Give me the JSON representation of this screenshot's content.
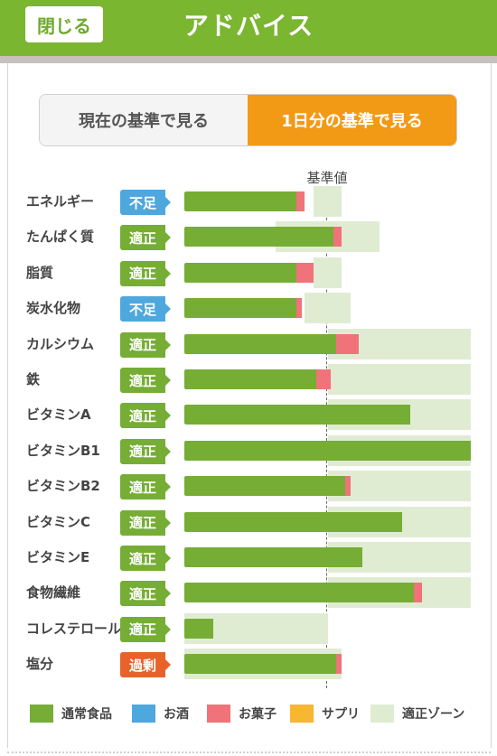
{
  "header": {
    "close_label": "閉じる",
    "title": "アドバイス"
  },
  "toggle": {
    "current_label": "現在の基準で見る",
    "daily_label": "1日分の基準で見る"
  },
  "chart_data": {
    "type": "bar",
    "reference_label": "基準値",
    "rows": [
      {
        "name": "エネルギー",
        "status": "不足",
        "status_type": "low",
        "zone": [
          0.45,
          0.55
        ],
        "food": 0.39,
        "snack": 0.03
      },
      {
        "name": "たんぱく質",
        "status": "適正",
        "status_type": "ok",
        "zone": [
          0.32,
          0.68
        ],
        "food": 0.52,
        "snack": 0.03
      },
      {
        "name": "脂質",
        "status": "適正",
        "status_type": "ok",
        "zone": [
          0.45,
          0.55
        ],
        "food": 0.39,
        "snack": 0.06
      },
      {
        "name": "炭水化物",
        "status": "不足",
        "status_type": "low",
        "zone": [
          0.42,
          0.58
        ],
        "food": 0.39,
        "snack": 0.02
      },
      {
        "name": "カルシウム",
        "status": "適正",
        "status_type": "ok",
        "zone": [
          0.5,
          1.0
        ],
        "food": 0.53,
        "snack": 0.08
      },
      {
        "name": "鉄",
        "status": "適正",
        "status_type": "ok",
        "zone": [
          0.5,
          1.0
        ],
        "food": 0.46,
        "snack": 0.05
      },
      {
        "name": "ビタミンA",
        "status": "適正",
        "status_type": "ok",
        "zone": [
          0.5,
          1.0
        ],
        "food": 0.79,
        "snack": 0.0
      },
      {
        "name": "ビタミンB1",
        "status": "適正",
        "status_type": "ok",
        "zone": [
          0.5,
          1.0
        ],
        "food": 1.0,
        "snack": 0.0
      },
      {
        "name": "ビタミンB2",
        "status": "適正",
        "status_type": "ok",
        "zone": [
          0.5,
          1.0
        ],
        "food": 0.56,
        "snack": 0.02
      },
      {
        "name": "ビタミンC",
        "status": "適正",
        "status_type": "ok",
        "zone": [
          0.5,
          1.0
        ],
        "food": 0.76,
        "snack": 0.0
      },
      {
        "name": "ビタミンE",
        "status": "適正",
        "status_type": "ok",
        "zone": [
          0.5,
          1.0
        ],
        "food": 0.62,
        "snack": 0.0
      },
      {
        "name": "食物繊維",
        "status": "適正",
        "status_type": "ok",
        "zone": [
          0.5,
          1.0
        ],
        "food": 0.8,
        "snack": 0.03
      },
      {
        "name": "コレステロール",
        "status": "適正",
        "status_type": "ok",
        "zone": [
          0.0,
          0.5
        ],
        "food": 0.1,
        "snack": 0.0
      },
      {
        "name": "塩分",
        "status": "過剰",
        "status_type": "high",
        "zone": [
          0.0,
          0.55
        ],
        "food": 0.53,
        "snack": 0.02
      }
    ]
  },
  "status_colors": {
    "low": "#4ea8dd",
    "ok": "#76ad35",
    "high": "#e8622a"
  },
  "legend": [
    {
      "label": "通常食品",
      "color": "#76ad35"
    },
    {
      "label": "お酒",
      "color": "#4ea8dd"
    },
    {
      "label": "お菓子",
      "color": "#f0737a"
    },
    {
      "label": "サプリ",
      "color": "#f7b731"
    },
    {
      "label": "適正ゾーン",
      "color": "#e0ecd2"
    }
  ]
}
